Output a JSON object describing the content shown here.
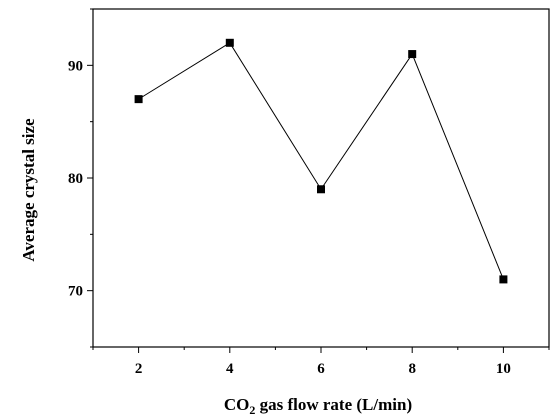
{
  "chart_data": {
    "type": "line",
    "x": [
      2,
      4,
      6,
      8,
      10
    ],
    "y": [
      87,
      92,
      79,
      91,
      71
    ],
    "xlabel": {
      "main": "CO",
      "subscript": "2",
      "rest": " gas flow rate (L/min)"
    },
    "ylabel": "Average crystal size",
    "xlim": [
      1,
      11
    ],
    "ylim": [
      65,
      95
    ],
    "xticks": [
      2,
      4,
      6,
      8,
      10
    ],
    "yticks": [
      70,
      80,
      90
    ],
    "grid": false,
    "legend": "none",
    "line_color": "#000000",
    "marker": "square"
  }
}
